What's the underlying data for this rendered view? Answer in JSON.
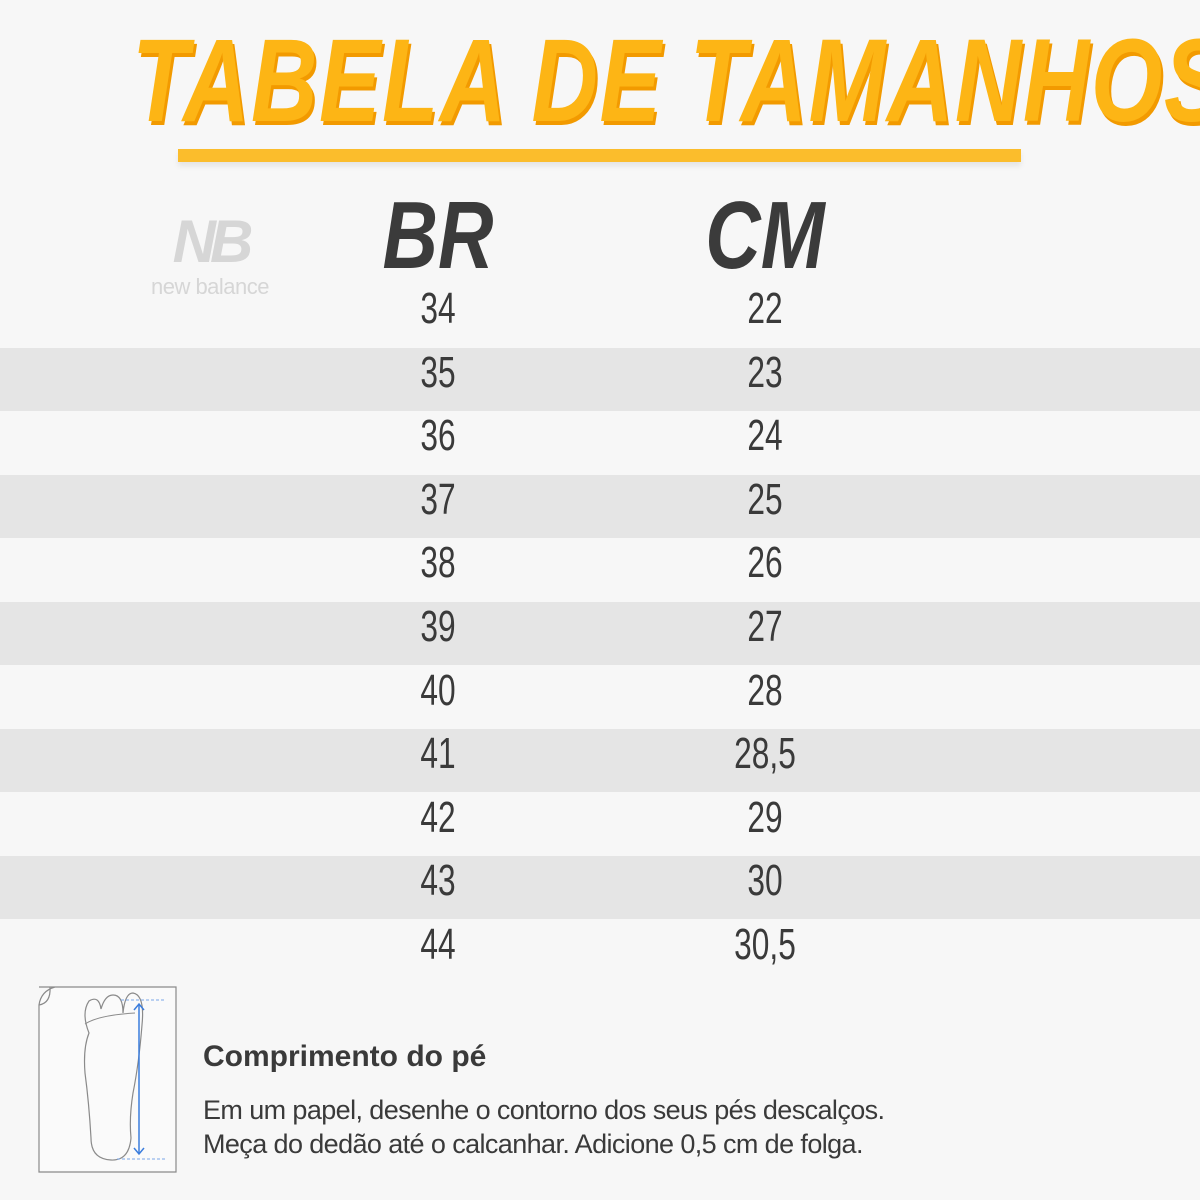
{
  "title": "TABELA DE TAMANHOS",
  "brand": {
    "name": "new balance",
    "monogram": "NB"
  },
  "colors": {
    "accent": "#fdb515",
    "stripe": "#e5e5e5",
    "text": "#3a3a3a",
    "measure": "#3b7ddd"
  },
  "table": {
    "headers": [
      "BR",
      "CM"
    ],
    "rows": [
      [
        "34",
        "22"
      ],
      [
        "35",
        "23"
      ],
      [
        "36",
        "24"
      ],
      [
        "37",
        "25"
      ],
      [
        "38",
        "26"
      ],
      [
        "39",
        "27"
      ],
      [
        "40",
        "28"
      ],
      [
        "41",
        "28,5"
      ],
      [
        "42",
        "29"
      ],
      [
        "43",
        "30"
      ],
      [
        "44",
        "30,5"
      ]
    ]
  },
  "note": {
    "icon": "foot-on-paper-measure-icon",
    "title": "Comprimento do pé",
    "lines": [
      "Em um papel, desenhe o contorno dos seus pés descalços.",
      "Meça do dedão até o calcanhar. Adicione 0,5 cm de folga."
    ]
  }
}
